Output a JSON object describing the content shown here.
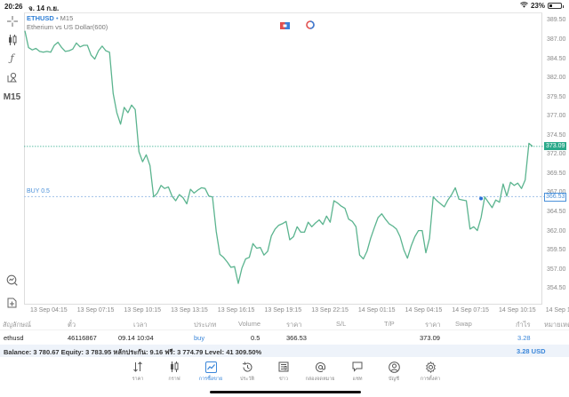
{
  "statusbar": {
    "time": "20:26",
    "date": "จ. 14 ก.ย.",
    "battery_pct": "23%"
  },
  "left_tools": [
    {
      "name": "crosshair-icon",
      "glyph": "┼"
    },
    {
      "name": "candlestick-icon",
      "glyph": "╫"
    },
    {
      "name": "function-icon",
      "glyph": "ƒ"
    },
    {
      "name": "objects-icon",
      "glyph": "⌂"
    },
    {
      "name": "timeframe",
      "glyph": "M15"
    },
    {
      "name": "chart-search-icon",
      "glyph": "⊙"
    },
    {
      "name": "add-indicator-icon",
      "glyph": "⊞"
    }
  ],
  "chart": {
    "symbol": "ETHUSD",
    "separator": "•",
    "timeframe": "M15",
    "description": "Etherium vs US Dollar(600)",
    "current_price": "373.09",
    "buy_price": "366.53",
    "buy_label": "BUY 0.5",
    "line_color": "#5bb48f",
    "current_line_color": "#2aa98a",
    "buy_line_color": "#4a90d9"
  },
  "chart_data": {
    "type": "line",
    "title": "ETHUSD • M15",
    "subtitle": "Etherium vs US Dollar(600)",
    "xlabel": "",
    "ylabel": "",
    "ylim": [
      352.5,
      389.5
    ],
    "y_ticks": [
      "389.50",
      "387.00",
      "384.50",
      "382.00",
      "379.50",
      "377.00",
      "374.50",
      "372.00",
      "369.50",
      "367.00",
      "364.50",
      "362.00",
      "359.50",
      "357.00",
      "354.50"
    ],
    "x_ticks": [
      "13 Sep 04:15",
      "13 Sep 07:15",
      "13 Sep 10:15",
      "13 Sep 13:15",
      "13 Sep 16:15",
      "13 Sep 19:15",
      "13 Sep 22:15",
      "14 Sep 01:15",
      "14 Sep 04:15",
      "14 Sep 07:15",
      "14 Sep 10:15",
      "14 Sep 13:15"
    ],
    "grid": false,
    "values": [
      388.2,
      386.0,
      385.7,
      385.9,
      385.5,
      385.4,
      385.5,
      385.4,
      386.3,
      386.7,
      386.0,
      385.5,
      385.6,
      385.8,
      386.6,
      386.1,
      386.3,
      386.3,
      385.0,
      384.5,
      385.6,
      386.2,
      385.6,
      385.4,
      380.0,
      377.5,
      376.0,
      378.2,
      377.5,
      378.5,
      377.9,
      372.4,
      371.1,
      372.0,
      370.6,
      366.5,
      367.0,
      368.0,
      367.6,
      367.8,
      366.6,
      366.0,
      366.8,
      366.4,
      365.6,
      367.5,
      367.0,
      367.4,
      367.7,
      367.6,
      366.6,
      366.5,
      362.0,
      359.0,
      358.6,
      358.0,
      357.3,
      357.4,
      355.2,
      357.2,
      358.4,
      358.6,
      360.4,
      359.8,
      359.9,
      358.9,
      359.4,
      361.4,
      362.3,
      362.8,
      363.0,
      363.3,
      360.9,
      361.3,
      362.6,
      361.9,
      361.9,
      363.2,
      362.6,
      363.1,
      363.5,
      362.9,
      364.0,
      363.2,
      366.0,
      365.7,
      365.3,
      365.0,
      363.6,
      363.3,
      362.6,
      358.9,
      358.4,
      359.4,
      361.1,
      362.5,
      363.8,
      364.3,
      363.6,
      363.0,
      362.7,
      362.3,
      361.3,
      359.6,
      358.5,
      360.1,
      361.3,
      362.1,
      362.1,
      359.2,
      361.1,
      366.5,
      366.0,
      365.6,
      365.2,
      366.1,
      366.8,
      367.7,
      366.2,
      366.1,
      366.0,
      362.3,
      362.6,
      362.1,
      363.8,
      366.5,
      365.8,
      365.1,
      366.1,
      365.8,
      368.2,
      366.6,
      368.4,
      368.0,
      368.3,
      367.6,
      368.7,
      373.5,
      373.1
    ],
    "series_name": "ETHUSD M15 close",
    "current_price": 373.09,
    "buy_entry": 366.53
  },
  "table": {
    "headers": [
      "สัญลักษณ์",
      "ตั๋ว",
      "เวลา",
      "ประเภท",
      "Volume",
      "ราคา",
      "S/L",
      "T/P",
      "ราคา",
      "Swap",
      "กำไร",
      "หมายเหตุ"
    ],
    "rows": [
      {
        "symbol": "ethusd",
        "ticket": "46116867",
        "time": "09.14 10:04",
        "type": "buy",
        "volume": "0.5",
        "open_price": "366.53",
        "sl": "",
        "tp": "",
        "price": "373.09",
        "swap": "",
        "profit": "3.28",
        "comment": ""
      }
    ]
  },
  "balance": {
    "text": "Balance: 3 780.67 Equity: 3 783.95 หลักประกัน: 9.16 ฟรี: 3 774.79 Level: 41 309.50%",
    "total_profit": "3.28  USD"
  },
  "tabs": [
    {
      "id": "quotes",
      "label": "ราคา",
      "icon": "⇅",
      "active": false
    },
    {
      "id": "chart",
      "label": "กราฟ",
      "icon": "╫",
      "active": false
    },
    {
      "id": "trade",
      "label": "การซื้อขาย",
      "icon": "📈",
      "active": true
    },
    {
      "id": "history",
      "label": "ประวัติ",
      "icon": "↻",
      "active": false
    },
    {
      "id": "news",
      "label": "ข่าว",
      "icon": "▤",
      "active": false
    },
    {
      "id": "mailbox",
      "label": "กล่องจดหมาย",
      "icon": "@",
      "active": false
    },
    {
      "id": "chat",
      "label": "แชท",
      "icon": "▭",
      "active": false
    },
    {
      "id": "account",
      "label": "บัญชี",
      "icon": "◎",
      "active": false
    },
    {
      "id": "settings",
      "label": "การตั้งค่า",
      "icon": "⚙",
      "active": false
    }
  ]
}
